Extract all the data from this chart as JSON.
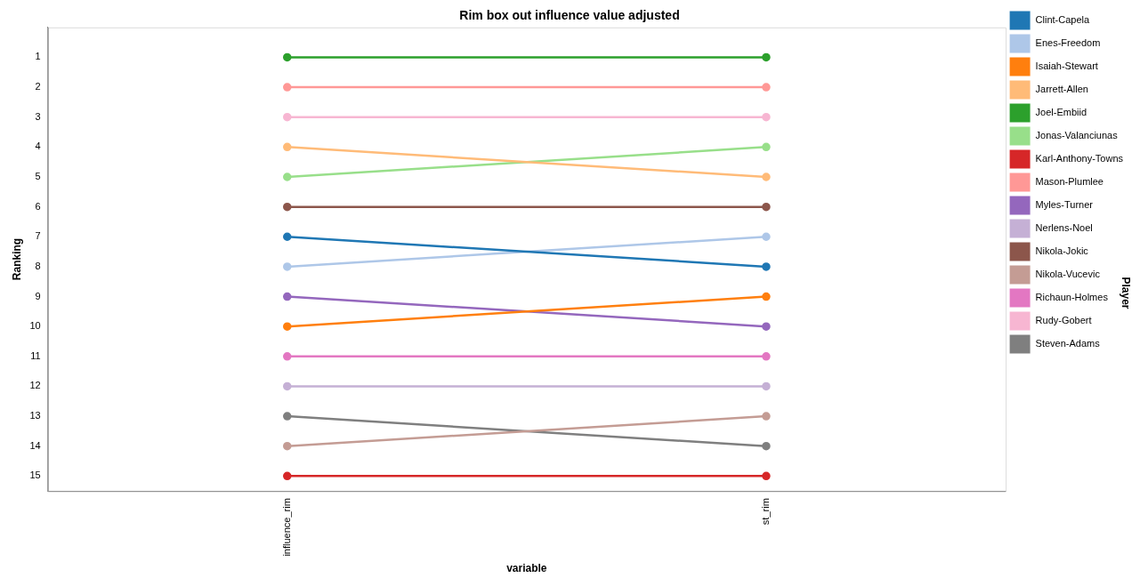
{
  "chart_data": {
    "type": "line",
    "title": "Rim box out influence value adjusted",
    "xlabel": "variable",
    "ylabel": "Ranking",
    "legend_title": "Player",
    "categories": [
      "influence_rim",
      "st_rim"
    ],
    "ylim": [
      15.5,
      0
    ],
    "yticks": [
      1,
      2,
      3,
      4,
      5,
      6,
      7,
      8,
      9,
      10,
      11,
      12,
      13,
      14,
      15
    ],
    "grid": false,
    "legend": "right",
    "marker": "circle",
    "line_style": "solid",
    "series": [
      {
        "name": "Clint-Capela",
        "color": "#1f77b4",
        "values": [
          7,
          8
        ]
      },
      {
        "name": "Enes-Freedom",
        "color": "#aec7e8",
        "values": [
          8,
          7
        ]
      },
      {
        "name": "Isaiah-Stewart",
        "color": "#ff7f0e",
        "values": [
          10,
          9
        ]
      },
      {
        "name": "Jarrett-Allen",
        "color": "#ffbb78",
        "values": [
          4,
          5
        ]
      },
      {
        "name": "Joel-Embiid",
        "color": "#2ca02c",
        "values": [
          1,
          1
        ]
      },
      {
        "name": "Jonas-Valanciunas",
        "color": "#98df8a",
        "values": [
          5,
          4
        ]
      },
      {
        "name": "Karl-Anthony-Towns",
        "color": "#d62728",
        "values": [
          15,
          15
        ]
      },
      {
        "name": "Mason-Plumlee",
        "color": "#ff9896",
        "values": [
          2,
          2
        ]
      },
      {
        "name": "Myles-Turner",
        "color": "#9467bd",
        "values": [
          9,
          10
        ]
      },
      {
        "name": "Nerlens-Noel",
        "color": "#c5b0d5",
        "values": [
          12,
          12
        ]
      },
      {
        "name": "Nikola-Jokic",
        "color": "#8c564b",
        "values": [
          6,
          6
        ]
      },
      {
        "name": "Nikola-Vucevic",
        "color": "#c49c94",
        "values": [
          14,
          13
        ]
      },
      {
        "name": "Richaun-Holmes",
        "color": "#e377c2",
        "values": [
          11,
          11
        ]
      },
      {
        "name": "Rudy-Gobert",
        "color": "#f7b6d2",
        "values": [
          3,
          3
        ]
      },
      {
        "name": "Steven-Adams",
        "color": "#7f7f7f",
        "values": [
          13,
          14
        ]
      }
    ]
  }
}
